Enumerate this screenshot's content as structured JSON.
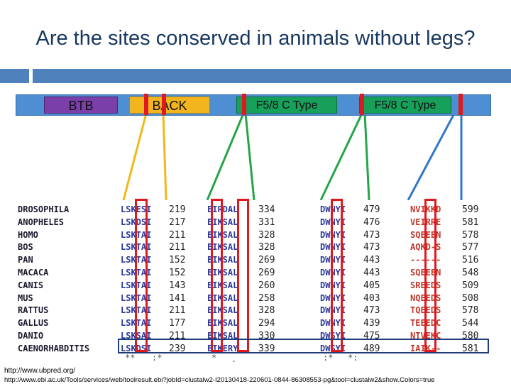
{
  "slide": {
    "title": "Are the sites conserved in animals without legs?"
  },
  "protein_diagram": {
    "domains": [
      {
        "label": "BTB",
        "color": "#7a3fa8"
      },
      {
        "label": "BACK",
        "color": "#f3b51e"
      },
      {
        "label": "F5/8 C Type",
        "color": "#16a05a"
      },
      {
        "label": "F5/8 C Type",
        "color": "#16a05a"
      }
    ],
    "site_marker_color": "#e0191f",
    "line_colors": {
      "back": "#f0b81b",
      "f1": "#25a548",
      "f2": "#25a548",
      "end": "#2f77c8"
    }
  },
  "alignment": {
    "species": [
      "DROSOPHILA",
      "ANOPHELES",
      "HOMO",
      "BOS",
      "PAN",
      "MACACA",
      "CANIS",
      "MUS",
      "RATTUS",
      "GALLUS",
      "DANIO",
      "CAENORHABDITIS"
    ],
    "block1_seq": [
      "LSKESI",
      "LSKDSI",
      "LSKTAI",
      "LSKTAI",
      "LSKTAI",
      "LSKTAI",
      "LSKTAI",
      "LSKTAI",
      "LSKTAI",
      "LSKTAI",
      "LSKSAI",
      "LSKDSI"
    ],
    "block1_num": [
      "219",
      "217",
      "211",
      "211",
      "152",
      "152",
      "143",
      "141",
      "211",
      "177",
      "211",
      "239"
    ],
    "block2_seq": [
      "EIRDAL",
      "EIKSAL",
      "EIKSAL",
      "EIKSAL",
      "EIKSAL",
      "EIKSAL",
      "EIKSAL",
      "EIKSAL",
      "EIKSAL",
      "EIKSAL",
      "EIKSAL",
      "EIKERY"
    ],
    "block2_num": [
      "334",
      "331",
      "328",
      "328",
      "269",
      "269",
      "260",
      "258",
      "328",
      "294",
      "330",
      "339"
    ],
    "block3_seq": [
      "DWNYI",
      "DWNYI",
      "DWNYI",
      "DWNYI",
      "DWNYI",
      "DWNYI",
      "DWNYI",
      "DWNYI",
      "DWNYI",
      "DWNYI",
      "DWSYI",
      "DWSYI"
    ],
    "block3_num": [
      "479",
      "476",
      "473",
      "473",
      "443",
      "443",
      "405",
      "403",
      "473",
      "439",
      "475",
      "489"
    ],
    "block4_seq": [
      "NVIKKD",
      "VEIRRE",
      "SQEEEN",
      "AQKD-S",
      "------",
      "SQEEEN",
      "SREEDS",
      "NQEEDS",
      "TQEEDS",
      "TEEEDC",
      "NTVEKC",
      "IAIK--"
    ],
    "block4_num": [
      "599",
      "581",
      "578",
      "577",
      "516",
      "548",
      "509",
      "508",
      "578",
      "544",
      "580",
      "581"
    ],
    "consensus": [
      "**",
      ":*",
      "*",
      ".",
      ":*",
      "*:"
    ]
  },
  "footer": {
    "line1": "http://www.ubpred.org/",
    "line2": "http://www.ebi.ac.uk/Tools/services/web/toolresult.ebi?jobId=clustalw2-I20130418-220601-0844-86308553-pg&tool=clustalw2&show.Colors=true"
  }
}
